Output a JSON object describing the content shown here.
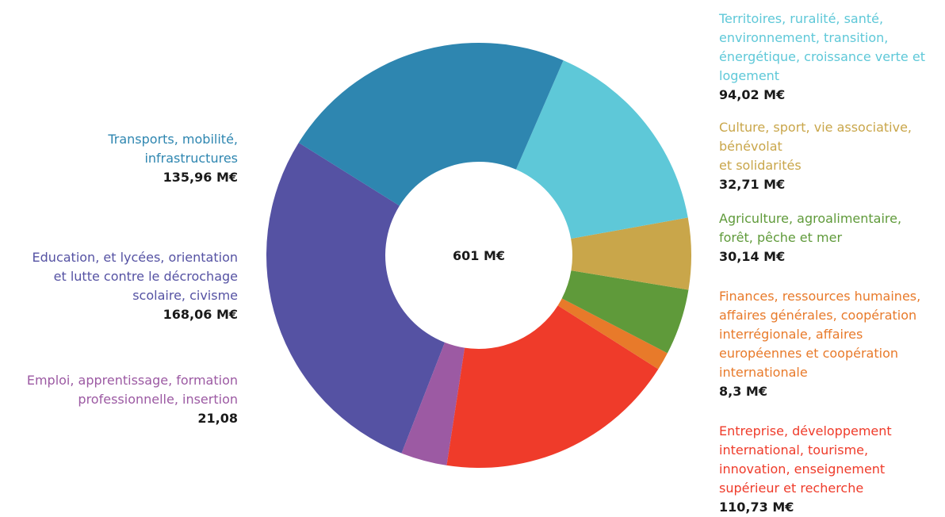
{
  "chart_data": {
    "type": "donut",
    "center_label": "601 M€",
    "categories": [
      "Transports, mobilité,\ninfrastructures",
      "Territoires, ruralité, santé,\nenvironnement, transition,\nénergétique, croissance verte et\nlogement",
      "Culture, sport, vie associative,\nbénévolat\net solidarités",
      "Agriculture, agroalimentaire,\nforêt, pêche et mer",
      "Finances, ressources humaines,\naffaires générales, coopération\ninterrégionale, affaires\neuropéennes et coopération\ninternationale",
      "Entreprise, développement\ninternational, tourisme,\ninnovation, enseignement\nsupérieur et recherche",
      "Emploi, apprentissage, formation\nprofessionnelle, insertion",
      "Education, et lycées, orientation\net lutte contre le décrochage\nscolaire, civisme"
    ],
    "values": [
      135.96,
      94.02,
      32.71,
      30.14,
      8.3,
      110.73,
      21.08,
      168.06
    ],
    "value_labels": [
      "135,96 M€",
      "94,02 M€",
      "32,71 M€",
      "30,14 M€",
      "8,3 M€",
      "110,73 M€",
      "21,08",
      "168,06 M€"
    ],
    "colors": [
      "#2e86b0",
      "#5ec8d8",
      "#c9a64a",
      "#5f9a3a",
      "#e87a2a",
      "#ef3b2a",
      "#9c5aa3",
      "#5552a3"
    ]
  }
}
